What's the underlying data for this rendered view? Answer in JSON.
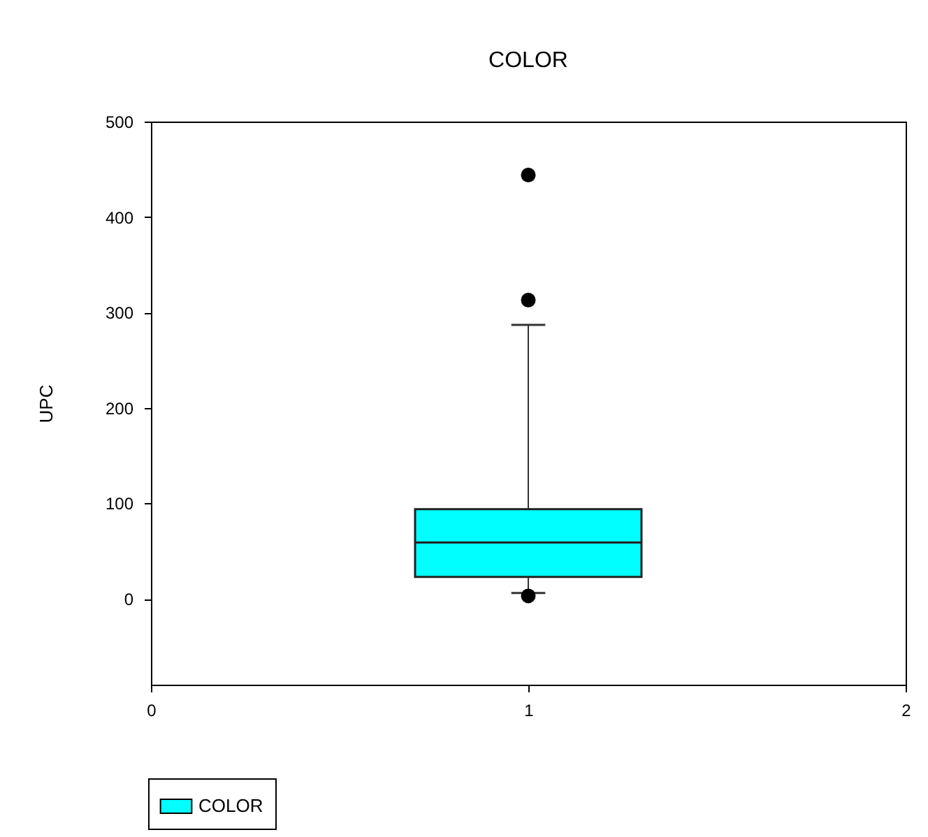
{
  "chart_data": {
    "type": "box",
    "title": "COLOR",
    "ylabel": "UPC",
    "categories": [
      "0",
      "1",
      "2"
    ],
    "ylim": [
      -90,
      500
    ],
    "yticks": [
      0,
      100,
      200,
      300,
      400,
      500
    ],
    "grid": false,
    "legend": "bottom left",
    "series": [
      {
        "name": "COLOR",
        "color": "#00ffff",
        "boxes": [
          null,
          {
            "low": 6,
            "q1": 23,
            "median": 59,
            "q3": 94,
            "high": 287,
            "outliers": [
              3,
              313,
              444
            ]
          },
          null
        ]
      }
    ]
  }
}
